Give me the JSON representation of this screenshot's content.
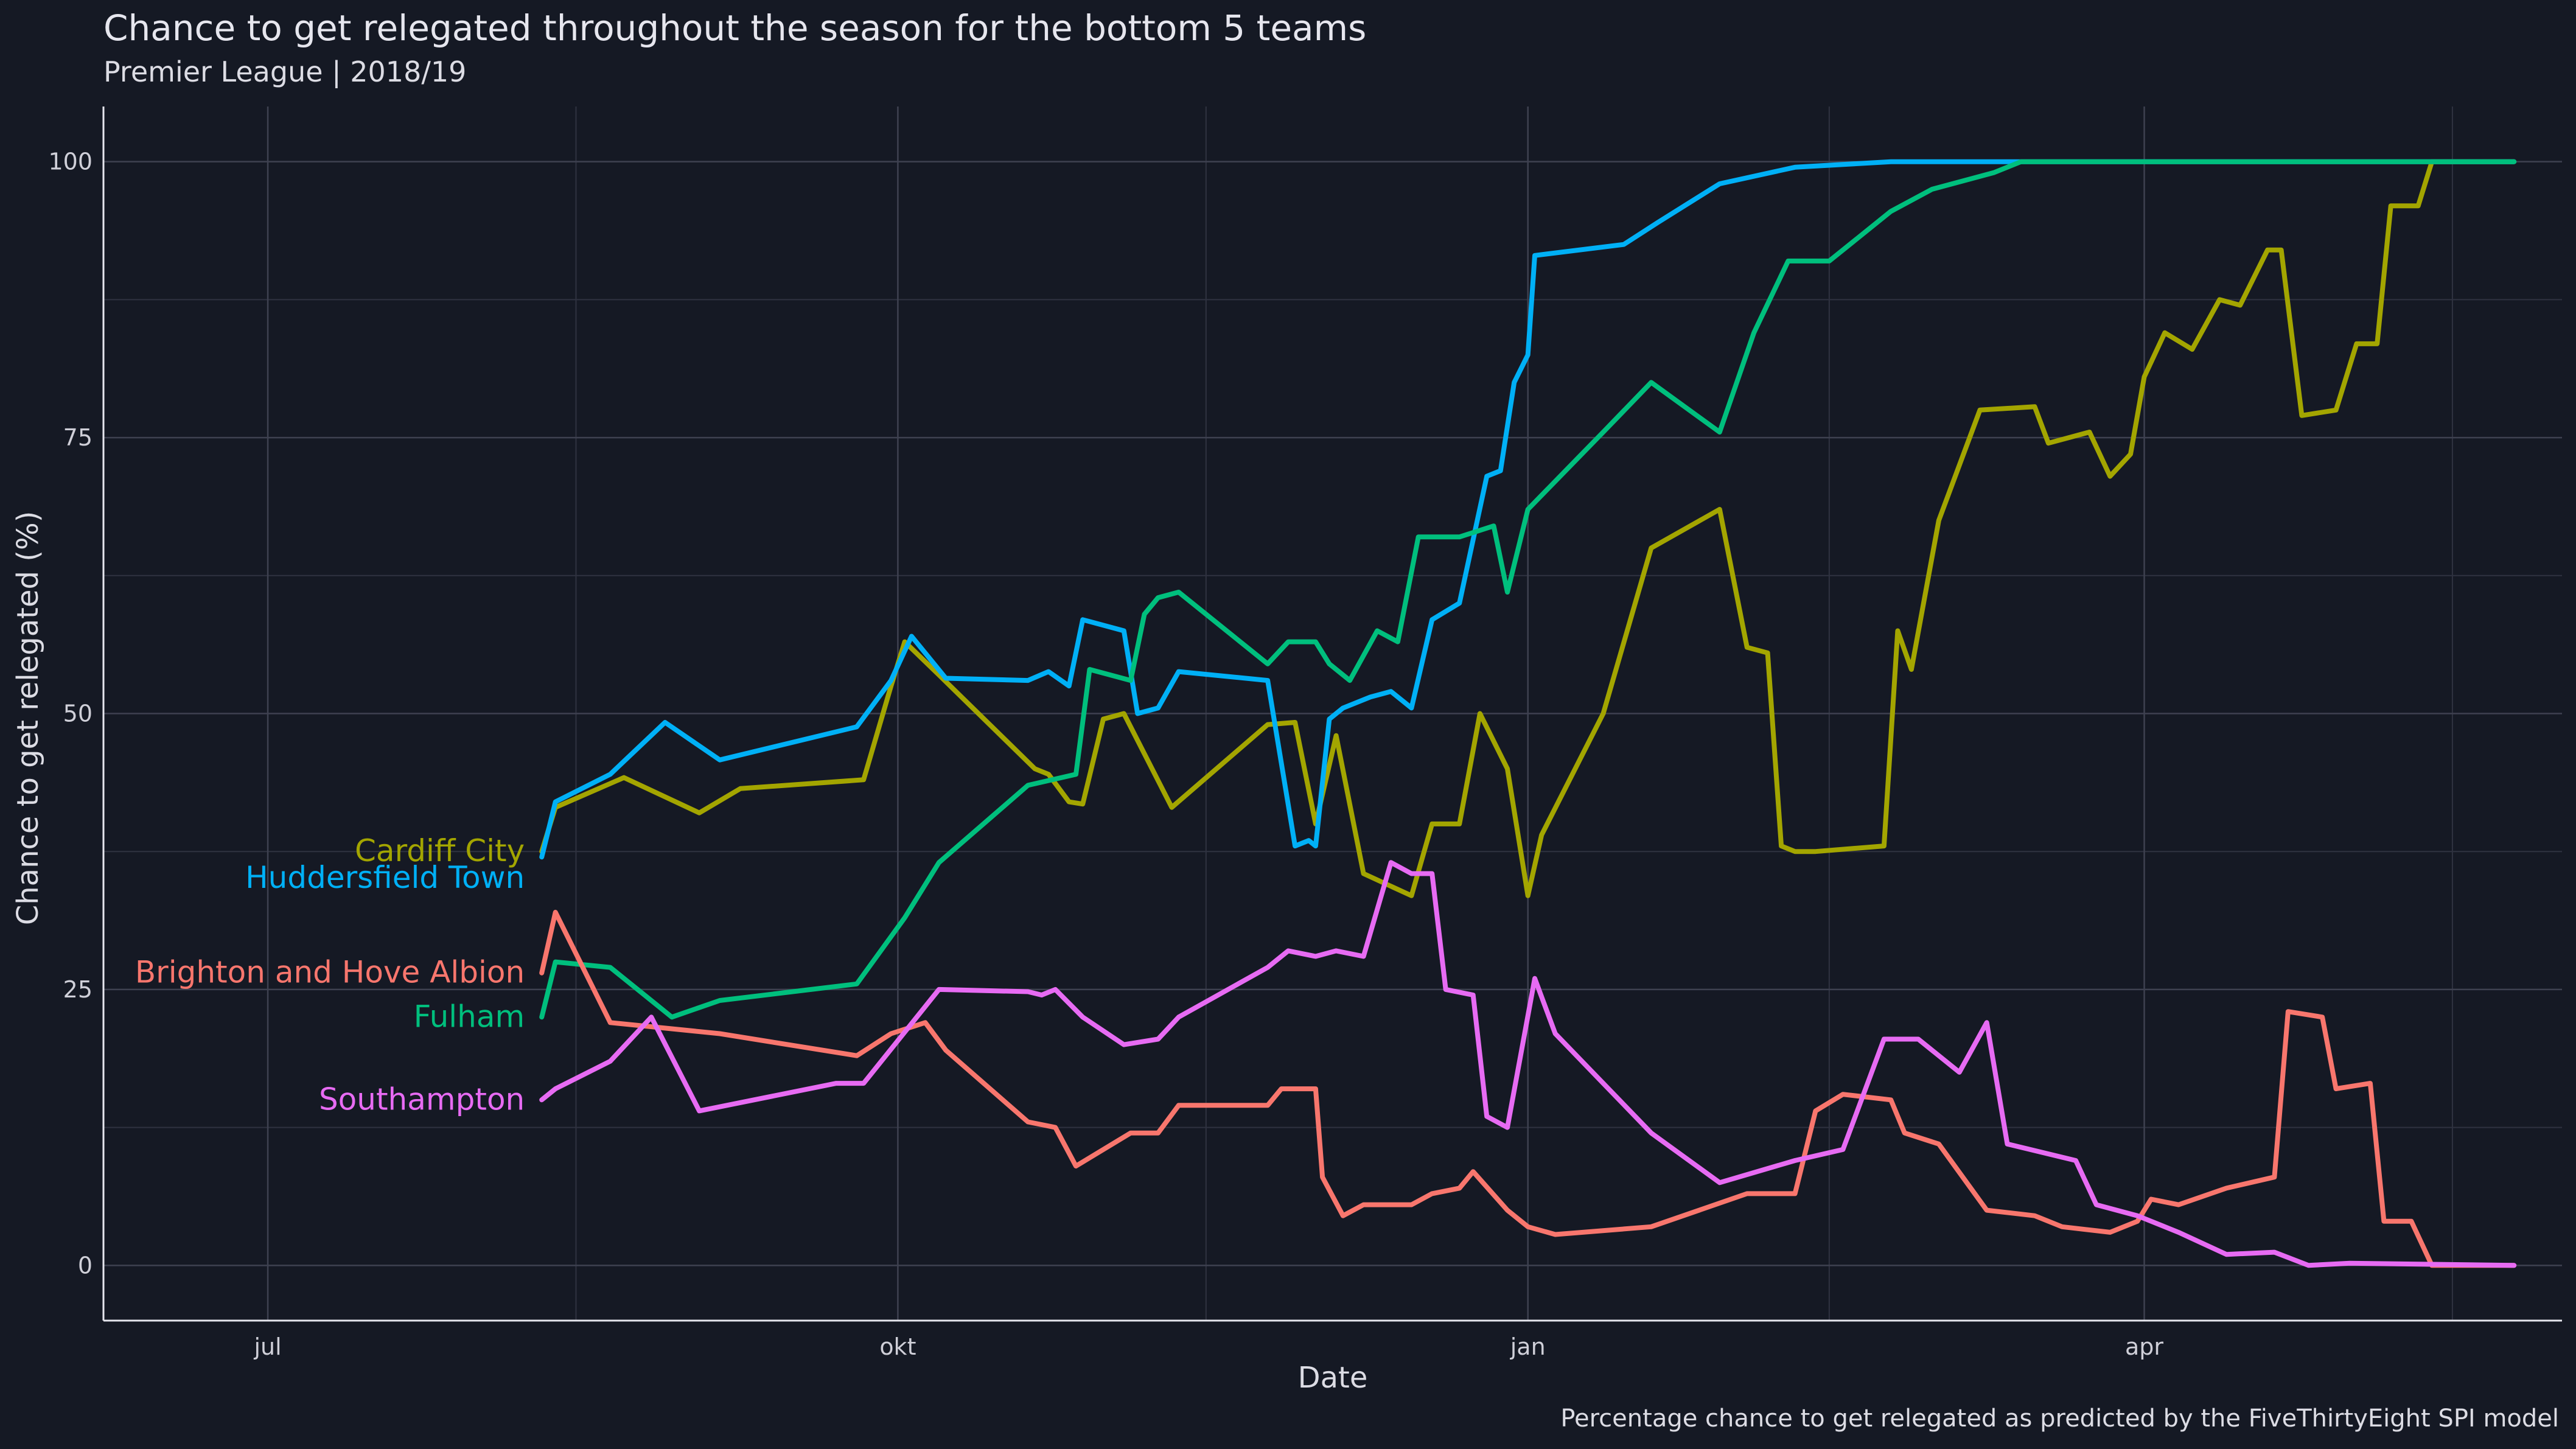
{
  "chart_data": {
    "type": "line",
    "title": "Chance to get relegated throughout the season for the bottom 5 teams",
    "subtitle": "Premier League  |  2018/19",
    "caption": "Percentage chance to get relegated as predicted by the FiveThirtyEight SPI model",
    "xlabel": "Date",
    "ylabel": "Chance to get relegated (%)",
    "xlim": [
      "2018-06-07",
      "2019-06-01"
    ],
    "ylim": [
      -5,
      105
    ],
    "x_ticks": [
      {
        "date": "2018-07-01",
        "label": "jul"
      },
      {
        "date": "2018-10-01",
        "label": "okt"
      },
      {
        "date": "2019-01-01",
        "label": "jan"
      },
      {
        "date": "2019-04-01",
        "label": "apr"
      }
    ],
    "x_minor_ticks": [
      "2018-08-15",
      "2018-11-15",
      "2019-02-14",
      "2019-05-16"
    ],
    "y_ticks": [
      0,
      25,
      50,
      75,
      100
    ],
    "y_minor_ticks": [
      12.5,
      37.5,
      62.5,
      87.5
    ],
    "grid": true,
    "legend": "direct labels at left",
    "series": [
      {
        "name": "Cardiff City",
        "color": "#a3a500",
        "points": [
          [
            "2018-08-10",
            37.5
          ],
          [
            "2018-08-12",
            41.5
          ],
          [
            "2018-08-22",
            44.2
          ],
          [
            "2018-09-02",
            41.0
          ],
          [
            "2018-09-08",
            43.2
          ],
          [
            "2018-09-26",
            44.0
          ],
          [
            "2018-09-30",
            52.5
          ],
          [
            "2018-10-02",
            56.5
          ],
          [
            "2018-10-07",
            53.5
          ],
          [
            "2018-10-21",
            45.0
          ],
          [
            "2018-10-23",
            44.5
          ],
          [
            "2018-10-26",
            42.0
          ],
          [
            "2018-10-28",
            41.8
          ],
          [
            "2018-10-31",
            49.5
          ],
          [
            "2018-11-03",
            50.0
          ],
          [
            "2018-11-10",
            41.5
          ],
          [
            "2018-11-24",
            49.0
          ],
          [
            "2018-11-28",
            49.2
          ],
          [
            "2018-12-01",
            40.0
          ],
          [
            "2018-12-04",
            48.0
          ],
          [
            "2018-12-08",
            35.5
          ],
          [
            "2018-12-15",
            33.5
          ],
          [
            "2018-12-18",
            40.0
          ],
          [
            "2018-12-22",
            40.0
          ],
          [
            "2018-12-25",
            50.0
          ],
          [
            "2018-12-29",
            45.0
          ],
          [
            "2019-01-01",
            33.5
          ],
          [
            "2019-01-03",
            39.0
          ],
          [
            "2019-01-12",
            50.0
          ],
          [
            "2019-01-19",
            65.0
          ],
          [
            "2019-01-29",
            68.5
          ],
          [
            "2019-02-02",
            56.0
          ],
          [
            "2019-02-05",
            55.5
          ],
          [
            "2019-02-07",
            38.0
          ],
          [
            "2019-02-09",
            37.5
          ],
          [
            "2019-02-12",
            37.5
          ],
          [
            "2019-02-22",
            38.0
          ],
          [
            "2019-02-24",
            57.5
          ],
          [
            "2019-02-26",
            54.0
          ],
          [
            "2019-03-02",
            67.5
          ],
          [
            "2019-03-08",
            77.5
          ],
          [
            "2019-03-16",
            77.8
          ],
          [
            "2019-03-18",
            74.5
          ],
          [
            "2019-03-24",
            75.5
          ],
          [
            "2019-03-27",
            71.5
          ],
          [
            "2019-03-30",
            73.5
          ],
          [
            "2019-04-01",
            80.5
          ],
          [
            "2019-04-04",
            84.5
          ],
          [
            "2019-04-08",
            83.0
          ],
          [
            "2019-04-12",
            87.5
          ],
          [
            "2019-04-15",
            87.0
          ],
          [
            "2019-04-19",
            92.0
          ],
          [
            "2019-04-21",
            92.0
          ],
          [
            "2019-04-24",
            77.0
          ],
          [
            "2019-04-29",
            77.5
          ],
          [
            "2019-05-02",
            83.5
          ],
          [
            "2019-05-05",
            83.5
          ],
          [
            "2019-05-07",
            96.0
          ],
          [
            "2019-05-11",
            96.0
          ],
          [
            "2019-05-13",
            100.0
          ],
          [
            "2019-05-25",
            100.0
          ]
        ]
      },
      {
        "name": "Huddersfield Town",
        "color": "#00b0f6",
        "points": [
          [
            "2018-08-10",
            37.0
          ],
          [
            "2018-08-12",
            42.0
          ],
          [
            "2018-08-20",
            44.5
          ],
          [
            "2018-08-28",
            49.2
          ],
          [
            "2018-09-05",
            45.8
          ],
          [
            "2018-09-25",
            48.8
          ],
          [
            "2018-09-30",
            53.0
          ],
          [
            "2018-10-03",
            57.0
          ],
          [
            "2018-10-08",
            53.2
          ],
          [
            "2018-10-20",
            53.0
          ],
          [
            "2018-10-23",
            53.8
          ],
          [
            "2018-10-26",
            52.5
          ],
          [
            "2018-10-28",
            58.5
          ],
          [
            "2018-11-03",
            57.5
          ],
          [
            "2018-11-05",
            50.0
          ],
          [
            "2018-11-08",
            50.5
          ],
          [
            "2018-11-11",
            53.8
          ],
          [
            "2018-11-24",
            53.0
          ],
          [
            "2018-11-28",
            38.0
          ],
          [
            "2018-11-30",
            38.5
          ],
          [
            "2018-12-01",
            38.0
          ],
          [
            "2018-12-03",
            49.5
          ],
          [
            "2018-12-05",
            50.5
          ],
          [
            "2018-12-09",
            51.5
          ],
          [
            "2018-12-12",
            52.0
          ],
          [
            "2018-12-15",
            50.5
          ],
          [
            "2018-12-18",
            58.5
          ],
          [
            "2018-12-22",
            60.0
          ],
          [
            "2018-12-26",
            71.5
          ],
          [
            "2018-12-28",
            72.0
          ],
          [
            "2018-12-30",
            80.0
          ],
          [
            "2019-01-01",
            82.5
          ],
          [
            "2019-01-02",
            91.5
          ],
          [
            "2019-01-15",
            92.5
          ],
          [
            "2019-01-20",
            94.5
          ],
          [
            "2019-01-29",
            98.0
          ],
          [
            "2019-02-09",
            99.5
          ],
          [
            "2019-02-23",
            100.0
          ],
          [
            "2019-05-25",
            100.0
          ]
        ]
      },
      {
        "name": "Fulham",
        "color": "#00bf7d",
        "points": [
          [
            "2018-08-10",
            22.5
          ],
          [
            "2018-08-12",
            27.5
          ],
          [
            "2018-08-20",
            27.0
          ],
          [
            "2018-08-29",
            22.5
          ],
          [
            "2018-09-05",
            24.0
          ],
          [
            "2018-09-25",
            25.5
          ],
          [
            "2018-10-02",
            31.5
          ],
          [
            "2018-10-07",
            36.5
          ],
          [
            "2018-10-20",
            43.5
          ],
          [
            "2018-10-27",
            44.5
          ],
          [
            "2018-10-29",
            54.0
          ],
          [
            "2018-11-04",
            53.0
          ],
          [
            "2018-11-06",
            59.0
          ],
          [
            "2018-11-08",
            60.5
          ],
          [
            "2018-11-11",
            61.0
          ],
          [
            "2018-11-24",
            54.5
          ],
          [
            "2018-11-27",
            56.5
          ],
          [
            "2018-12-01",
            56.5
          ],
          [
            "2018-12-03",
            54.5
          ],
          [
            "2018-12-06",
            53.0
          ],
          [
            "2018-12-10",
            57.5
          ],
          [
            "2018-12-13",
            56.5
          ],
          [
            "2018-12-16",
            66.0
          ],
          [
            "2018-12-22",
            66.0
          ],
          [
            "2018-12-27",
            67.0
          ],
          [
            "2018-12-29",
            61.0
          ],
          [
            "2019-01-01",
            68.5
          ],
          [
            "2019-01-12",
            75.5
          ],
          [
            "2019-01-19",
            80.0
          ],
          [
            "2019-01-29",
            75.5
          ],
          [
            "2019-02-03",
            84.5
          ],
          [
            "2019-02-08",
            91.0
          ],
          [
            "2019-02-14",
            91.0
          ],
          [
            "2019-02-23",
            95.5
          ],
          [
            "2019-03-01",
            97.5
          ],
          [
            "2019-03-10",
            99.0
          ],
          [
            "2019-03-14",
            100.0
          ],
          [
            "2019-05-25",
            100.0
          ]
        ]
      },
      {
        "name": "Brighton and Hove Albion",
        "color": "#f8766d",
        "points": [
          [
            "2018-08-10",
            26.5
          ],
          [
            "2018-08-12",
            32.0
          ],
          [
            "2018-08-20",
            22.0
          ],
          [
            "2018-09-05",
            21.0
          ],
          [
            "2018-09-25",
            19.0
          ],
          [
            "2018-09-30",
            21.0
          ],
          [
            "2018-10-05",
            22.0
          ],
          [
            "2018-10-08",
            19.5
          ],
          [
            "2018-10-20",
            13.0
          ],
          [
            "2018-10-24",
            12.5
          ],
          [
            "2018-10-27",
            9.0
          ],
          [
            "2018-11-04",
            12.0
          ],
          [
            "2018-11-08",
            12.0
          ],
          [
            "2018-11-11",
            14.5
          ],
          [
            "2018-11-24",
            14.5
          ],
          [
            "2018-11-26",
            16.0
          ],
          [
            "2018-12-01",
            16.0
          ],
          [
            "2018-12-02",
            8.0
          ],
          [
            "2018-12-05",
            4.5
          ],
          [
            "2018-12-08",
            5.5
          ],
          [
            "2018-12-15",
            5.5
          ],
          [
            "2018-12-18",
            6.5
          ],
          [
            "2018-12-22",
            7.0
          ],
          [
            "2018-12-24",
            8.5
          ],
          [
            "2018-12-29",
            5.0
          ],
          [
            "2019-01-01",
            3.5
          ],
          [
            "2019-01-05",
            2.8
          ],
          [
            "2019-01-19",
            3.5
          ],
          [
            "2019-02-02",
            6.5
          ],
          [
            "2019-02-09",
            6.5
          ],
          [
            "2019-02-12",
            14.0
          ],
          [
            "2019-02-16",
            15.5
          ],
          [
            "2019-02-23",
            15.0
          ],
          [
            "2019-02-25",
            12.0
          ],
          [
            "2019-03-02",
            11.0
          ],
          [
            "2019-03-09",
            5.0
          ],
          [
            "2019-03-16",
            4.5
          ],
          [
            "2019-03-20",
            3.5
          ],
          [
            "2019-03-27",
            3.0
          ],
          [
            "2019-03-31",
            4.0
          ],
          [
            "2019-04-02",
            6.0
          ],
          [
            "2019-04-06",
            5.5
          ],
          [
            "2019-04-13",
            7.0
          ],
          [
            "2019-04-20",
            8.0
          ],
          [
            "2019-04-22",
            23.0
          ],
          [
            "2019-04-27",
            22.5
          ],
          [
            "2019-04-29",
            16.0
          ],
          [
            "2019-05-04",
            16.5
          ],
          [
            "2019-05-06",
            4.0
          ],
          [
            "2019-05-10",
            4.0
          ],
          [
            "2019-05-13",
            0.0
          ],
          [
            "2019-05-25",
            0.0
          ]
        ]
      },
      {
        "name": "Southampton",
        "color": "#e76bf3",
        "points": [
          [
            "2018-08-10",
            15.0
          ],
          [
            "2018-08-12",
            16.0
          ],
          [
            "2018-08-20",
            18.5
          ],
          [
            "2018-08-26",
            22.5
          ],
          [
            "2018-09-02",
            14.0
          ],
          [
            "2018-09-22",
            16.5
          ],
          [
            "2018-09-26",
            16.5
          ],
          [
            "2018-10-07",
            25.0
          ],
          [
            "2018-10-20",
            24.8
          ],
          [
            "2018-10-22",
            24.5
          ],
          [
            "2018-10-24",
            25.0
          ],
          [
            "2018-10-28",
            22.5
          ],
          [
            "2018-11-03",
            20.0
          ],
          [
            "2018-11-08",
            20.5
          ],
          [
            "2018-11-11",
            22.5
          ],
          [
            "2018-11-24",
            27.0
          ],
          [
            "2018-11-27",
            28.5
          ],
          [
            "2018-12-01",
            28.0
          ],
          [
            "2018-12-04",
            28.5
          ],
          [
            "2018-12-08",
            28.0
          ],
          [
            "2018-12-12",
            36.5
          ],
          [
            "2018-12-15",
            35.5
          ],
          [
            "2018-12-18",
            35.5
          ],
          [
            "2018-12-20",
            25.0
          ],
          [
            "2018-12-24",
            24.5
          ],
          [
            "2018-12-26",
            13.5
          ],
          [
            "2018-12-29",
            12.5
          ],
          [
            "2019-01-02",
            26.0
          ],
          [
            "2019-01-05",
            21.0
          ],
          [
            "2019-01-19",
            12.0
          ],
          [
            "2019-01-29",
            7.5
          ],
          [
            "2019-02-09",
            9.5
          ],
          [
            "2019-02-16",
            10.5
          ],
          [
            "2019-02-22",
            20.5
          ],
          [
            "2019-02-27",
            20.5
          ],
          [
            "2019-03-05",
            17.5
          ],
          [
            "2019-03-09",
            22.0
          ],
          [
            "2019-03-12",
            11.0
          ],
          [
            "2019-03-22",
            9.5
          ],
          [
            "2019-03-25",
            5.5
          ],
          [
            "2019-03-31",
            4.5
          ],
          [
            "2019-04-06",
            3.0
          ],
          [
            "2019-04-13",
            1.0
          ],
          [
            "2019-04-20",
            1.2
          ],
          [
            "2019-04-25",
            0.0
          ],
          [
            "2019-05-01",
            0.2
          ],
          [
            "2019-05-25",
            0.0
          ]
        ]
      }
    ]
  }
}
